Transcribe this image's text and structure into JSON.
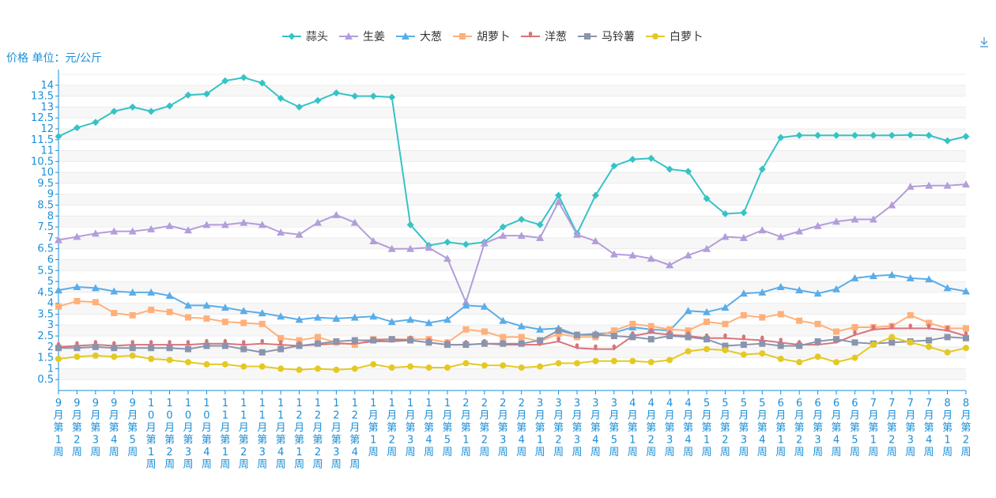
{
  "unit_label": "价格 单位：元/公斤",
  "chart_data": {
    "type": "line",
    "ylabel": "价格 单位：元/公斤",
    "ylim": [
      0,
      14.5
    ],
    "yticks": [
      0.5,
      1,
      1.5,
      2,
      2.5,
      3,
      3.5,
      4,
      4.5,
      5,
      5.5,
      6,
      6.5,
      7,
      7.5,
      8,
      8.5,
      9,
      9.5,
      10,
      10.5,
      11,
      11.5,
      12,
      12.5,
      13,
      13.5,
      14
    ],
    "grid": true,
    "legend_position": "top-center",
    "categories": [
      "9月第1周",
      "9月第2周",
      "9月第3周",
      "9月第4周",
      "9月第5周",
      "10月第1周",
      "10月第2周",
      "10月第3周",
      "10月第4周",
      "11月第1周",
      "11月第2周",
      "11月第3周",
      "11月第4周",
      "12月第1周",
      "12月第2周",
      "12月第3周",
      "12月第4周",
      "1月第1周",
      "1月第2周",
      "1月第3周",
      "1月第4周",
      "1月第5周",
      "2月第1周",
      "2月第2周",
      "2月第3周",
      "2月第4周",
      "3月第1周",
      "3月第2周",
      "3月第3周",
      "3月第4周",
      "3月第5周",
      "4月第1周",
      "4月第2周",
      "4月第3周",
      "4月第4周",
      "5月第1周",
      "5月第2周",
      "5月第3周",
      "5月第4周",
      "6月第1周",
      "6月第2周",
      "6月第3周",
      "6月第4周",
      "6月第5周",
      "7月第1周",
      "7月第2周",
      "7月第3周",
      "7月第4周",
      "8月第1周",
      "8月第2周"
    ],
    "series": [
      {
        "name": "蒜头",
        "color": "#36c3c5",
        "marker": "diamond",
        "values": [
          11.65,
          12.05,
          12.3,
          12.8,
          13.0,
          12.8,
          13.05,
          13.55,
          13.6,
          14.2,
          14.35,
          14.1,
          13.4,
          13.0,
          13.3,
          13.65,
          13.5,
          13.5,
          13.45,
          7.6,
          6.65,
          6.8,
          6.7,
          6.8,
          7.5,
          7.85,
          7.6,
          8.95,
          7.2,
          8.95,
          10.3,
          10.6,
          10.65,
          10.15,
          10.05,
          8.8,
          8.1,
          8.15,
          10.15,
          11.6,
          11.7,
          11.7,
          11.7,
          11.7,
          11.7,
          11.7,
          11.72,
          11.7,
          11.45,
          11.65
        ]
      },
      {
        "name": "生姜",
        "color": "#b39ddb",
        "marker": "triangle",
        "values": [
          6.9,
          7.05,
          7.2,
          7.3,
          7.3,
          7.4,
          7.55,
          7.35,
          7.6,
          7.6,
          7.7,
          7.6,
          7.25,
          7.15,
          7.7,
          8.05,
          7.7,
          6.85,
          6.5,
          6.5,
          6.55,
          6.05,
          4.05,
          6.75,
          7.1,
          7.1,
          7.0,
          8.65,
          7.15,
          6.85,
          6.25,
          6.2,
          6.05,
          5.75,
          6.2,
          6.5,
          7.05,
          7.0,
          7.35,
          7.05,
          7.3,
          7.55,
          7.75,
          7.85,
          7.85,
          8.5,
          9.35,
          9.4,
          9.4,
          9.45
        ]
      },
      {
        "name": "大葱",
        "color": "#5aade8",
        "marker": "triangle",
        "values": [
          4.6,
          4.75,
          4.7,
          4.55,
          4.5,
          4.5,
          4.35,
          3.9,
          3.9,
          3.8,
          3.65,
          3.55,
          3.4,
          3.25,
          3.35,
          3.3,
          3.35,
          3.4,
          3.15,
          3.25,
          3.1,
          3.25,
          3.9,
          3.85,
          3.2,
          2.95,
          2.8,
          2.85,
          2.55,
          2.6,
          2.65,
          2.9,
          2.8,
          2.75,
          3.65,
          3.6,
          3.8,
          4.45,
          4.5,
          4.75,
          4.6,
          4.45,
          4.65,
          5.15,
          5.25,
          5.3,
          5.15,
          5.1,
          4.7,
          4.55
        ]
      },
      {
        "name": "胡萝卜",
        "color": "#ffb07a",
        "marker": "square",
        "values": [
          3.85,
          4.1,
          4.05,
          3.55,
          3.45,
          3.7,
          3.6,
          3.35,
          3.3,
          3.15,
          3.1,
          3.05,
          2.4,
          2.3,
          2.45,
          2.2,
          2.1,
          2.35,
          2.35,
          2.35,
          2.35,
          2.2,
          2.8,
          2.7,
          2.45,
          2.45,
          2.25,
          2.6,
          2.45,
          2.45,
          2.75,
          3.05,
          2.95,
          2.8,
          2.75,
          3.15,
          3.05,
          3.45,
          3.35,
          3.5,
          3.2,
          3.05,
          2.7,
          2.9,
          2.9,
          2.95,
          3.45,
          3.1,
          2.85,
          2.85
        ]
      },
      {
        "name": "洋葱",
        "color": "#d9737b",
        "marker": "pin",
        "values": [
          2.0,
          2.05,
          2.1,
          2.05,
          2.1,
          2.1,
          2.1,
          2.1,
          2.15,
          2.15,
          2.1,
          2.15,
          2.1,
          2.05,
          2.1,
          2.15,
          2.15,
          2.25,
          2.25,
          2.3,
          2.2,
          2.1,
          2.1,
          2.15,
          2.1,
          2.1,
          2.1,
          2.25,
          1.95,
          1.9,
          1.9,
          2.5,
          2.65,
          2.55,
          2.5,
          2.4,
          2.4,
          2.35,
          2.3,
          2.2,
          2.1,
          2.1,
          2.2,
          2.55,
          2.8,
          2.85,
          2.85,
          2.85,
          2.75,
          2.5
        ]
      },
      {
        "name": "马铃薯",
        "color": "#8a94ad",
        "marker": "square",
        "values": [
          1.95,
          1.95,
          2.0,
          1.95,
          1.95,
          1.95,
          1.95,
          1.9,
          2.05,
          2.05,
          1.9,
          1.75,
          1.9,
          2.05,
          2.15,
          2.25,
          2.3,
          2.3,
          2.35,
          2.3,
          2.2,
          2.1,
          2.1,
          2.15,
          2.15,
          2.15,
          2.3,
          2.75,
          2.55,
          2.55,
          2.5,
          2.45,
          2.35,
          2.5,
          2.45,
          2.35,
          2.05,
          2.1,
          2.15,
          2.05,
          2.05,
          2.25,
          2.35,
          2.2,
          2.15,
          2.2,
          2.25,
          2.3,
          2.45,
          2.4
        ]
      },
      {
        "name": "白萝卜",
        "color": "#e4c924",
        "marker": "circle",
        "values": [
          1.45,
          1.55,
          1.6,
          1.55,
          1.6,
          1.45,
          1.4,
          1.3,
          1.2,
          1.2,
          1.1,
          1.1,
          1.0,
          0.95,
          1.0,
          0.95,
          1.0,
          1.2,
          1.05,
          1.1,
          1.05,
          1.05,
          1.25,
          1.15,
          1.15,
          1.05,
          1.1,
          1.25,
          1.25,
          1.35,
          1.35,
          1.35,
          1.3,
          1.4,
          1.8,
          1.9,
          1.85,
          1.65,
          1.7,
          1.45,
          1.3,
          1.55,
          1.3,
          1.5,
          2.1,
          2.45,
          2.2,
          2.0,
          1.75,
          1.95
        ]
      }
    ]
  }
}
